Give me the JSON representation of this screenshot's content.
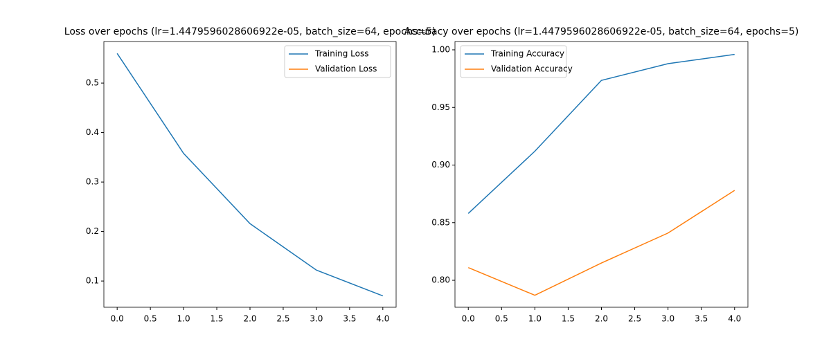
{
  "chart_data": [
    {
      "type": "line",
      "title": "Loss over epochs (lr=1.4479596028606922e-05, batch_size=64, epochs=5)",
      "x": [
        0,
        1,
        2,
        3,
        4
      ],
      "series": [
        {
          "name": "Training Loss",
          "color": "#1f77b4",
          "values": [
            0.56,
            0.358,
            0.216,
            0.122,
            0.07
          ]
        },
        {
          "name": "Validation Loss",
          "color": "#ff7f0e",
          "values": [
            null,
            null,
            null,
            null,
            null
          ]
        }
      ],
      "xlim": [
        -0.2,
        4.2
      ],
      "xticks": [
        {
          "value": 0,
          "label": "0.0"
        },
        0.5,
        {
          "value": 1,
          "label": "1.0"
        },
        1.5,
        {
          "value": 2,
          "label": "2.0"
        },
        2.5,
        {
          "value": 3,
          "label": "3.0"
        },
        3.5,
        {
          "value": 4,
          "label": "4.0"
        }
      ],
      "ylim": [
        0.047,
        0.584
      ],
      "yticks": [
        0.1,
        0.2,
        0.3,
        0.4,
        0.5
      ],
      "legend": "upper right"
    },
    {
      "type": "line",
      "title": "Accuracy over epochs (lr=1.4479596028606922e-05, batch_size=64, epochs=5)",
      "x": [
        0,
        1,
        2,
        3,
        4
      ],
      "series": [
        {
          "name": "Training Accuracy",
          "color": "#1f77b4",
          "values": [
            0.858,
            0.912,
            0.9735,
            0.988,
            0.996
          ]
        },
        {
          "name": "Validation Accuracy",
          "color": "#ff7f0e",
          "values": [
            0.811,
            0.787,
            0.815,
            0.841,
            0.878
          ]
        }
      ],
      "xlim": [
        -0.2,
        4.2
      ],
      "xticks": [
        {
          "value": 0,
          "label": "0.0"
        },
        0.5,
        {
          "value": 1,
          "label": "1.0"
        },
        1.5,
        {
          "value": 2,
          "label": "2.0"
        },
        2.5,
        {
          "value": 3,
          "label": "3.0"
        },
        3.5,
        {
          "value": 4,
          "label": "4.0"
        }
      ],
      "ylim": [
        0.7766,
        1.0072
      ],
      "yticks": [
        {
          "value": 0.8,
          "label": "0.80"
        },
        {
          "value": 0.85,
          "label": "0.85"
        },
        {
          "value": 0.9,
          "label": "0.90"
        },
        {
          "value": 0.95,
          "label": "0.95"
        },
        {
          "value": 1,
          "label": "1.00"
        }
      ],
      "legend": "upper left"
    }
  ]
}
